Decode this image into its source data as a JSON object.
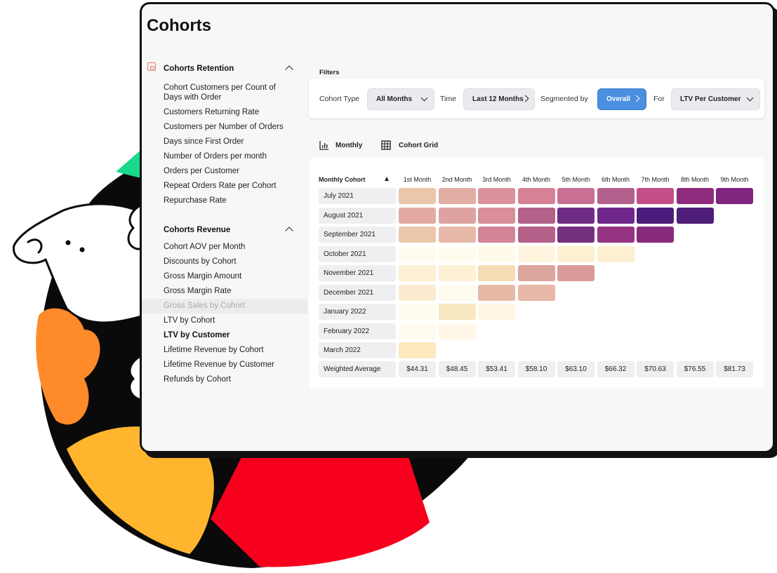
{
  "page": {
    "title": "Cohorts"
  },
  "sidebar": {
    "sections": [
      {
        "title": "Cohorts Retention",
        "items": [
          "Cohort Customers per Count of Days with Order",
          "Customers Returning Rate",
          "Customers per Number of Orders",
          "Days since First Order",
          "Number of Orders per month",
          "Orders per Customer",
          "Repeat Orders Rate per Cohort",
          "Repurchase Rate"
        ]
      },
      {
        "title": "Cohorts Revenue",
        "items": [
          "Cohort AOV per Month",
          "Discounts by Cohort",
          "Gross Margin Amount",
          "Gross Margin Rate",
          "Gross Sales by Cohort",
          "LTV by Cohort",
          "LTV by Customer",
          "Lifetime Revenue by Cohort",
          "Lifetime Revenue by Customer",
          "Refunds by Cohort"
        ],
        "disabled_item": "Gross Sales by Cohort",
        "active_item": "LTV by Customer"
      }
    ]
  },
  "filters": {
    "label": "Filters",
    "cohort_type_label": "Cohort Type",
    "cohort_type_value": "All Months",
    "time_label": "Time",
    "time_value": "Last 12 Months",
    "segmented_label": "Segmented by",
    "segmented_value": "Overall",
    "for_label": "For",
    "for_value": "LTV Per Customer"
  },
  "view_tabs": {
    "monthly": "Monthly",
    "grid": "Cohort Grid"
  },
  "table": {
    "corner_header": "Monthly Cohort",
    "columns": [
      "1st Month",
      "2nd Month",
      "3rd Month",
      "4th Month",
      "5th Month",
      "6th Month",
      "7th Month",
      "8th Month",
      "9th Month"
    ],
    "rows": [
      {
        "label": "July 2021",
        "colors": [
          "#ecc6aa",
          "#e2ada3",
          "#d9929c",
          "#d68195",
          "#c86f93",
          "#b4608d",
          "#c24f85",
          "#8f2c7e",
          "#7f257e"
        ]
      },
      {
        "label": "August 2021",
        "colors": [
          "#e3aaa3",
          "#dea2a0",
          "#d98e9a",
          "#b4618a",
          "#6f2c85",
          "#70278b",
          "#4c1c7c",
          "#4e1e78"
        ]
      },
      {
        "label": "September 2021",
        "colors": [
          "#ecc6aa",
          "#e6b8a7",
          "#d58397",
          "#b46088",
          "#75307f",
          "#973481",
          "#872a7c"
        ]
      },
      {
        "label": "October 2021",
        "colors": [
          "#fffbef",
          "#fffbee",
          "#fffae9",
          "#fff5df",
          "#fdf0d2",
          "#fcf0d0"
        ]
      },
      {
        "label": "November 2021",
        "colors": [
          "#fcefd3",
          "#fdf0d4",
          "#f4ddb4",
          "#dca59d",
          "#db9a9a"
        ]
      },
      {
        "label": "December 2021",
        "colors": [
          "#fcebd0",
          "#fffbef",
          "#e6baa5",
          "#e7b9a8"
        ]
      },
      {
        "label": "January 2022",
        "colors": [
          "#fffbf0",
          "#f9e7c0",
          "#fff6e3"
        ]
      },
      {
        "label": "February 2022",
        "colors": [
          "#fffbef",
          "#fff8ea"
        ]
      },
      {
        "label": "March 2022",
        "colors": [
          "#fde8bf"
        ]
      }
    ],
    "average": {
      "label": "Weighted Average",
      "values": [
        "$44.31",
        "$48.45",
        "$53.41",
        "$58.10",
        "$63.10",
        "$66.32",
        "$70.63",
        "$76.55",
        "$81.73"
      ]
    }
  },
  "colors": {
    "accent_blue": "#4a8fe0",
    "illustration_black": "#0a0a0a",
    "illustration_orange": "#ff8a2a",
    "illustration_yellow": "#ffb52e",
    "illustration_red": "#f7001e",
    "illustration_green": "#1bd98a",
    "illustration_blue": "#1ea7ff"
  },
  "icons": [
    "lock-icon",
    "chevron-up-icon",
    "chevron-down-icon",
    "chevron-right-icon",
    "bar-chart-icon",
    "grid-icon",
    "sort-up-icon"
  ]
}
